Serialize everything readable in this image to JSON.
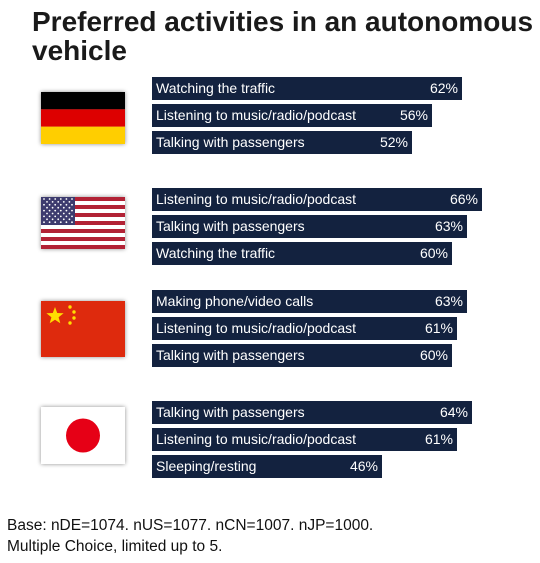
{
  "title": "Preferred activities in an autonomous vehicle",
  "colors": {
    "bar": "#13223f",
    "text_on_bar": "#ffffff"
  },
  "chart_data": {
    "type": "bar",
    "orientation": "horizontal",
    "value_unit": "%",
    "groups": [
      {
        "flag": "germany-flag",
        "categories": [
          "Watching the traffic",
          "Listening to music/radio/podcast",
          "Talking with passengers"
        ],
        "values": [
          62,
          56,
          52
        ]
      },
      {
        "flag": "usa-flag",
        "categories": [
          "Listening to music/radio/podcast",
          "Talking with passengers",
          "Watching the traffic"
        ],
        "values": [
          66,
          63,
          60
        ]
      },
      {
        "flag": "china-flag",
        "categories": [
          "Making phone/video calls",
          "Listening to music/radio/podcast",
          "Talking with passengers"
        ],
        "values": [
          63,
          61,
          60
        ]
      },
      {
        "flag": "japan-flag",
        "categories": [
          "Talking with passengers",
          "Listening to music/radio/podcast",
          "Sleeping/resting"
        ],
        "values": [
          64,
          61,
          46
        ]
      }
    ]
  },
  "footnote": {
    "line1": "Base: nDE=1074. nUS=1077. nCN=1007. nJP=1000.",
    "line2": "Multiple Choice, limited up to 5."
  }
}
